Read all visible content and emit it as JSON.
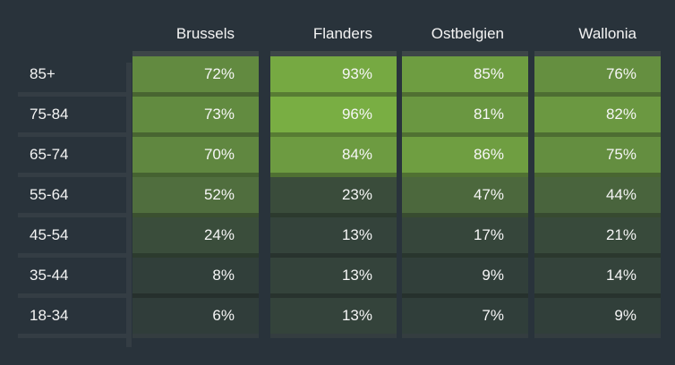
{
  "chart_data": {
    "type": "heatmap",
    "title": "",
    "columns": [
      "Brussels",
      "Flanders",
      "Ostbelgien",
      "Wallonia"
    ],
    "rows": [
      "85+",
      "75-84",
      "65-74",
      "55-64",
      "45-54",
      "35-44",
      "18-34"
    ],
    "values": [
      [
        72,
        93,
        85,
        76
      ],
      [
        73,
        96,
        81,
        82
      ],
      [
        70,
        84,
        86,
        75
      ],
      [
        52,
        23,
        47,
        44
      ],
      [
        24,
        13,
        17,
        21
      ],
      [
        8,
        13,
        9,
        14
      ],
      [
        6,
        13,
        7,
        9
      ]
    ],
    "labels": [
      [
        "72%",
        "93%",
        "85%",
        "76%"
      ],
      [
        "73%",
        "96%",
        "81%",
        "82%"
      ],
      [
        "70%",
        "84%",
        "86%",
        "75%"
      ],
      [
        "52%",
        "23%",
        "47%",
        "44%"
      ],
      [
        "24%",
        "13%",
        "17%",
        "21%"
      ],
      [
        "8%",
        "13%",
        "9%",
        "14%"
      ],
      [
        "6%",
        "13%",
        "7%",
        "9%"
      ]
    ],
    "unit": "%",
    "color_scale": {
      "low": "#2e3a3a",
      "high": "#7db443"
    },
    "legend": "none"
  },
  "colors": {
    "background": "#29333b",
    "text": "#f4f4f4"
  }
}
